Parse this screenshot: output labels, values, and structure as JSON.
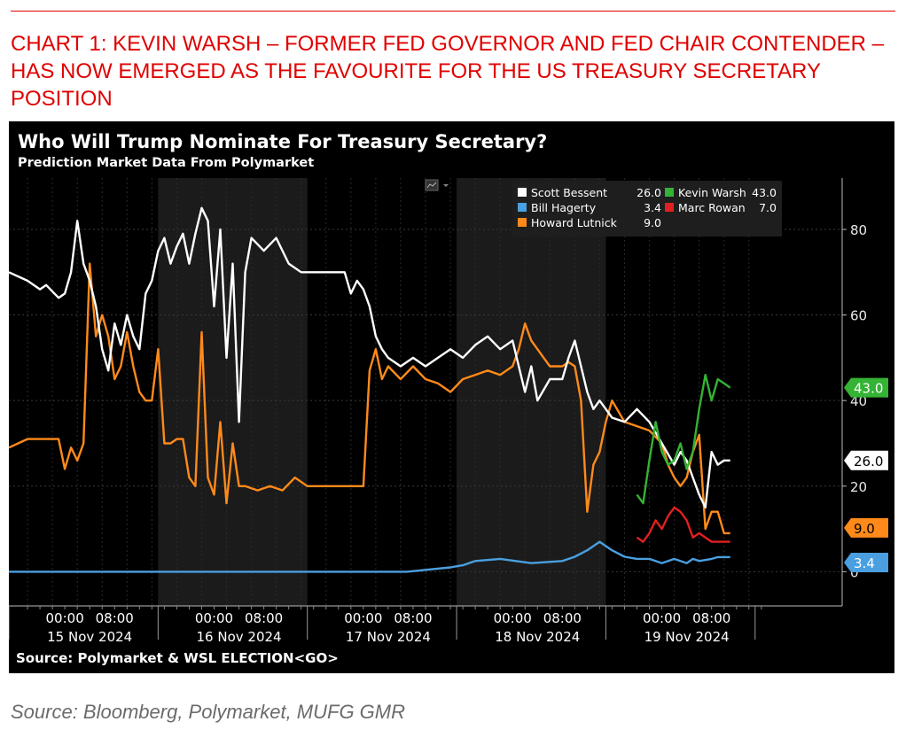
{
  "caption": "CHART 1: KEVIN WARSH – FORMER FED GOVERNOR AND FED CHAIR CONTENDER – HAS NOW EMERGED AS THE FAVOURITE FOR THE US TREASURY SECRETARY POSITION",
  "footer_source": "Source: Bloomberg, Polymarket, MUFG GMR",
  "chart_data": {
    "type": "line",
    "title": "Who Will Trump Nominate For Treasury Secretary?",
    "subtitle": "Prediction Market Data From Polymarket",
    "source": "Source: Polymarket & WSL ELECTION<GO>",
    "xlabel": "",
    "ylabel": "",
    "x_unit": "hours since 15 Nov 2024 00:00",
    "xlim": [
      -9,
      125
    ],
    "ylim": [
      -8,
      92
    ],
    "yticks": [
      0,
      20,
      40,
      60,
      80
    ],
    "y_axis_side": "right",
    "grid": true,
    "legend_position": "top-right",
    "x_ticks": [
      {
        "x": 0,
        "label": "00:00"
      },
      {
        "x": 8,
        "label": "08:00"
      },
      {
        "x": 24,
        "label": "00:00"
      },
      {
        "x": 32,
        "label": "08:00"
      },
      {
        "x": 48,
        "label": "00:00"
      },
      {
        "x": 56,
        "label": "08:00"
      },
      {
        "x": 72,
        "label": "00:00"
      },
      {
        "x": 80,
        "label": "08:00"
      },
      {
        "x": 96,
        "label": "00:00"
      },
      {
        "x": 104,
        "label": "08:00"
      }
    ],
    "day_labels": [
      {
        "x": 4,
        "label": "15 Nov 2024"
      },
      {
        "x": 28,
        "label": "16 Nov 2024"
      },
      {
        "x": 52,
        "label": "17 Nov 2024"
      },
      {
        "x": 76,
        "label": "18 Nov 2024"
      },
      {
        "x": 100,
        "label": "19 Nov 2024"
      }
    ],
    "shaded_ranges": [
      [
        15,
        39
      ],
      [
        63,
        87
      ]
    ],
    "series": [
      {
        "name": "Scott Bessent",
        "last": "26.0",
        "color": "#ffffff",
        "points": [
          [
            -9,
            70
          ],
          [
            -6,
            68
          ],
          [
            -4,
            66
          ],
          [
            -3,
            67
          ],
          [
            -1,
            64
          ],
          [
            0,
            65
          ],
          [
            1,
            70
          ],
          [
            2,
            82
          ],
          [
            3,
            72
          ],
          [
            4,
            68
          ],
          [
            5,
            62
          ],
          [
            6,
            52
          ],
          [
            7,
            47
          ],
          [
            8,
            58
          ],
          [
            9,
            53
          ],
          [
            10,
            60
          ],
          [
            11,
            55
          ],
          [
            12,
            52
          ],
          [
            13,
            65
          ],
          [
            14,
            68
          ],
          [
            15,
            75
          ],
          [
            16,
            78
          ],
          [
            17,
            72
          ],
          [
            18,
            76
          ],
          [
            19,
            79
          ],
          [
            20,
            72
          ],
          [
            21,
            79
          ],
          [
            22,
            85
          ],
          [
            23,
            82
          ],
          [
            24,
            62
          ],
          [
            25,
            80
          ],
          [
            26,
            50
          ],
          [
            27,
            72
          ],
          [
            28,
            35
          ],
          [
            29,
            70
          ],
          [
            30,
            78
          ],
          [
            32,
            75
          ],
          [
            34,
            78
          ],
          [
            36,
            72
          ],
          [
            38,
            70
          ],
          [
            42,
            70
          ],
          [
            45,
            70
          ],
          [
            46,
            65
          ],
          [
            47,
            68
          ],
          [
            48,
            66
          ],
          [
            49,
            62
          ],
          [
            50,
            55
          ],
          [
            51,
            52
          ],
          [
            52,
            50
          ],
          [
            54,
            48
          ],
          [
            56,
            50
          ],
          [
            58,
            48
          ],
          [
            60,
            50
          ],
          [
            62,
            52
          ],
          [
            64,
            50
          ],
          [
            66,
            53
          ],
          [
            68,
            55
          ],
          [
            70,
            52
          ],
          [
            72,
            54
          ],
          [
            73,
            48
          ],
          [
            74,
            42
          ],
          [
            75,
            48
          ],
          [
            76,
            40
          ],
          [
            78,
            45
          ],
          [
            80,
            45
          ],
          [
            81,
            50
          ],
          [
            82,
            54
          ],
          [
            83,
            48
          ],
          [
            84,
            42
          ],
          [
            85,
            38
          ],
          [
            86,
            40
          ],
          [
            87,
            38
          ],
          [
            88,
            36
          ],
          [
            90,
            35
          ],
          [
            92,
            38
          ],
          [
            94,
            35
          ],
          [
            96,
            30
          ],
          [
            98,
            25
          ],
          [
            99,
            28
          ],
          [
            100,
            26
          ],
          [
            101,
            22
          ],
          [
            102,
            18
          ],
          [
            103,
            15
          ],
          [
            104,
            28
          ],
          [
            105,
            25
          ],
          [
            106,
            26
          ],
          [
            107,
            26
          ]
        ]
      },
      {
        "name": "Howard Lutnick",
        "last": "9.0",
        "color": "#ff8a1a",
        "points": [
          [
            -9,
            29
          ],
          [
            -6,
            31
          ],
          [
            -1,
            31
          ],
          [
            0,
            24
          ],
          [
            1,
            29
          ],
          [
            2,
            26
          ],
          [
            3,
            30
          ],
          [
            4,
            72
          ],
          [
            5,
            55
          ],
          [
            6,
            60
          ],
          [
            7,
            55
          ],
          [
            8,
            45
          ],
          [
            9,
            48
          ],
          [
            10,
            56
          ],
          [
            11,
            48
          ],
          [
            12,
            42
          ],
          [
            13,
            40
          ],
          [
            14,
            40
          ],
          [
            15,
            52
          ],
          [
            16,
            30
          ],
          [
            17,
            30
          ],
          [
            18,
            31
          ],
          [
            19,
            31
          ],
          [
            20,
            22
          ],
          [
            21,
            20
          ],
          [
            22,
            56
          ],
          [
            23,
            22
          ],
          [
            24,
            18
          ],
          [
            25,
            35
          ],
          [
            26,
            16
          ],
          [
            27,
            30
          ],
          [
            28,
            20
          ],
          [
            29,
            20
          ],
          [
            31,
            19
          ],
          [
            33,
            20
          ],
          [
            35,
            19
          ],
          [
            37,
            22
          ],
          [
            39,
            20
          ],
          [
            42,
            20
          ],
          [
            45,
            20
          ],
          [
            46,
            20
          ],
          [
            47,
            20
          ],
          [
            48,
            20
          ],
          [
            49,
            47
          ],
          [
            50,
            52
          ],
          [
            51,
            45
          ],
          [
            52,
            48
          ],
          [
            54,
            45
          ],
          [
            56,
            48
          ],
          [
            58,
            45
          ],
          [
            60,
            44
          ],
          [
            62,
            42
          ],
          [
            64,
            45
          ],
          [
            66,
            46
          ],
          [
            68,
            47
          ],
          [
            70,
            46
          ],
          [
            72,
            48
          ],
          [
            73,
            52
          ],
          [
            74,
            58
          ],
          [
            75,
            54
          ],
          [
            76,
            52
          ],
          [
            77,
            50
          ],
          [
            78,
            48
          ],
          [
            80,
            48
          ],
          [
            81,
            49
          ],
          [
            82,
            48
          ],
          [
            83,
            40
          ],
          [
            84,
            14
          ],
          [
            85,
            25
          ],
          [
            86,
            28
          ],
          [
            87,
            35
          ],
          [
            88,
            40
          ],
          [
            90,
            35
          ],
          [
            92,
            34
          ],
          [
            94,
            33
          ],
          [
            96,
            30
          ],
          [
            97,
            25
          ],
          [
            98,
            22
          ],
          [
            99,
            20
          ],
          [
            100,
            22
          ],
          [
            101,
            28
          ],
          [
            102,
            32
          ],
          [
            103,
            10
          ],
          [
            104,
            14
          ],
          [
            105,
            14
          ],
          [
            106,
            9
          ],
          [
            107,
            9
          ]
        ]
      },
      {
        "name": "Bill Hagerty",
        "last": "3.4",
        "color": "#4a9fe0",
        "points": [
          [
            -9,
            0
          ],
          [
            30,
            0
          ],
          [
            55,
            0
          ],
          [
            62,
            1
          ],
          [
            64,
            1.5
          ],
          [
            66,
            2.5
          ],
          [
            70,
            3
          ],
          [
            75,
            2
          ],
          [
            80,
            2.5
          ],
          [
            82,
            3.5
          ],
          [
            84,
            5
          ],
          [
            86,
            7
          ],
          [
            88,
            5
          ],
          [
            90,
            3.5
          ],
          [
            92,
            3
          ],
          [
            94,
            3
          ],
          [
            96,
            2
          ],
          [
            98,
            3
          ],
          [
            100,
            2
          ],
          [
            101,
            3
          ],
          [
            102,
            2.5
          ],
          [
            104,
            3
          ],
          [
            105,
            3.4
          ],
          [
            107,
            3.4
          ]
        ]
      },
      {
        "name": "Kevin Warsh",
        "last": "43.0",
        "color": "#34b334",
        "points": [
          [
            92,
            18
          ],
          [
            93,
            16
          ],
          [
            94,
            26
          ],
          [
            95,
            35
          ],
          [
            96,
            28
          ],
          [
            97,
            25
          ],
          [
            98,
            26
          ],
          [
            99,
            30
          ],
          [
            100,
            24
          ],
          [
            101,
            28
          ],
          [
            102,
            38
          ],
          [
            103,
            46
          ],
          [
            104,
            40
          ],
          [
            105,
            45
          ],
          [
            106,
            44
          ],
          [
            107,
            43
          ]
        ]
      },
      {
        "name": "Marc Rowan",
        "last": "7.0",
        "color": "#e02020",
        "points": [
          [
            92,
            8
          ],
          [
            93,
            7
          ],
          [
            94,
            9
          ],
          [
            95,
            12
          ],
          [
            96,
            10
          ],
          [
            97,
            13
          ],
          [
            98,
            15
          ],
          [
            99,
            14
          ],
          [
            100,
            12
          ],
          [
            101,
            8
          ],
          [
            102,
            9
          ],
          [
            103,
            8
          ],
          [
            104,
            7
          ],
          [
            105,
            7
          ],
          [
            107,
            7
          ]
        ]
      }
    ]
  }
}
